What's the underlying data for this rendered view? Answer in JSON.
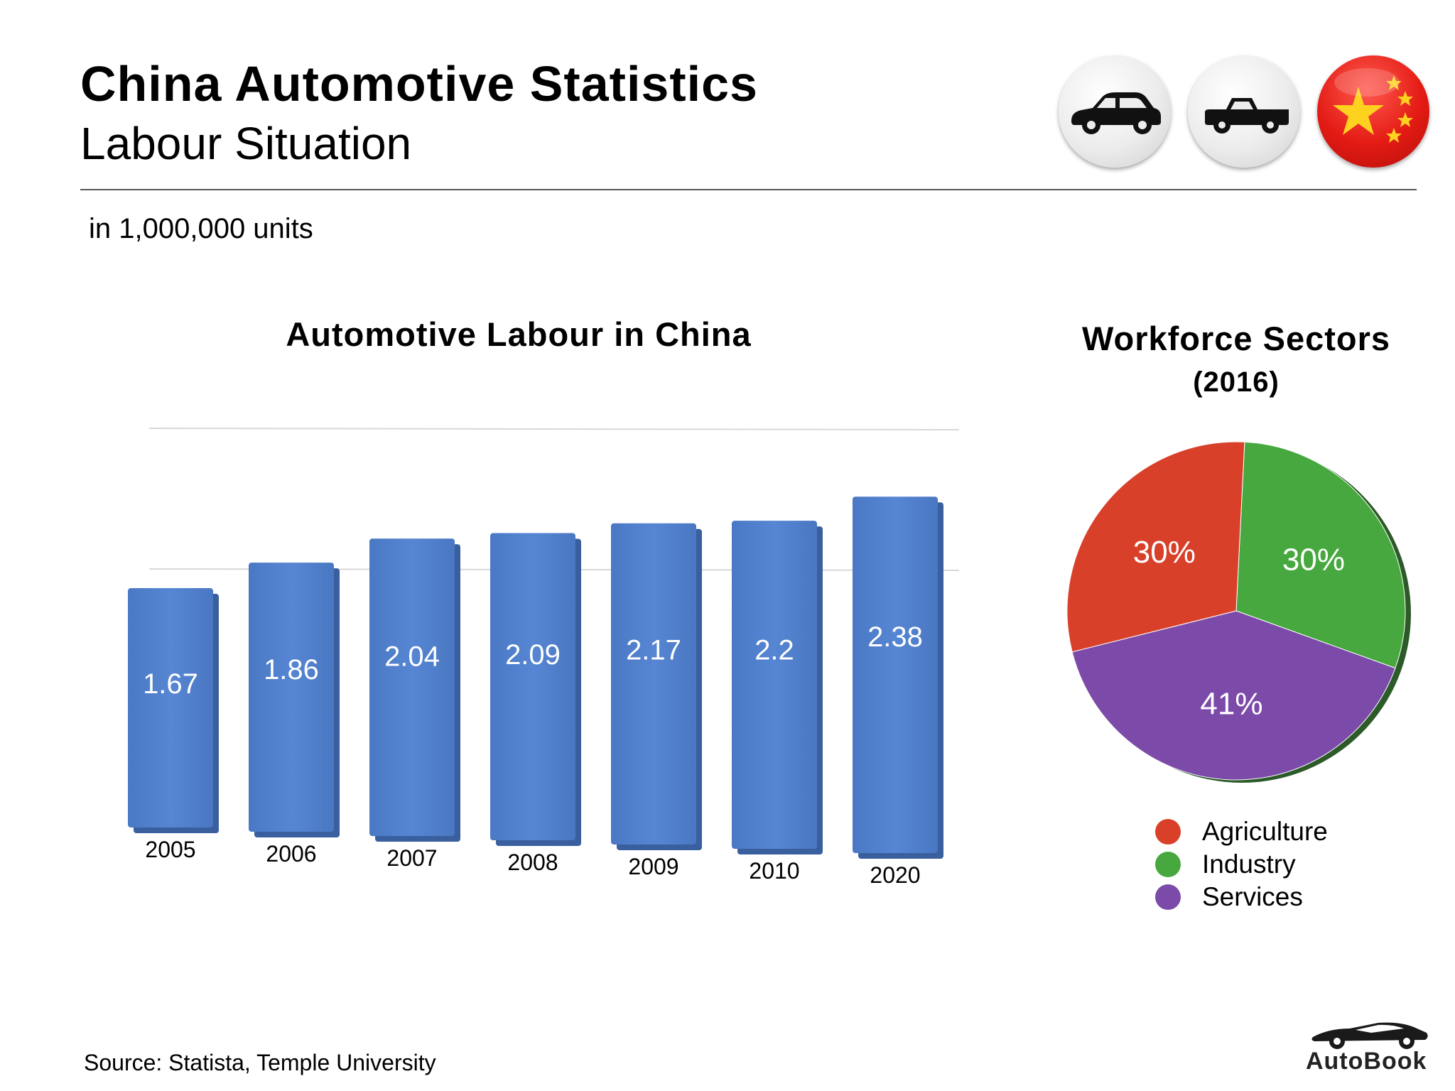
{
  "header": {
    "title": "China Automotive Statistics",
    "subtitle": "Labour Situation"
  },
  "icons": [
    "car-icon",
    "pickup-truck-icon",
    "china-flag-icon"
  ],
  "units_note": "in 1,000,000 units",
  "chart_data": [
    {
      "type": "bar",
      "title": "Automotive Labour in China",
      "categories": [
        "2005",
        "2006",
        "2007",
        "2008",
        "2009",
        "2010",
        "2020"
      ],
      "values": [
        1.67,
        1.86,
        2.04,
        2.09,
        2.17,
        2.2,
        2.38
      ],
      "value_labels": [
        "1.67",
        "1.86",
        "2.04",
        "2.09",
        "2.17",
        "2.2",
        "2.38"
      ],
      "xlabel": "",
      "ylabel": "",
      "ylim": [
        0,
        2.5
      ],
      "grid": true,
      "color": "#4f7ecb"
    },
    {
      "type": "pie",
      "title": "Workforce Sectors",
      "subtitle": "(2016)",
      "labels": [
        "Agriculture",
        "Industry",
        "Services"
      ],
      "values": [
        30,
        30,
        41
      ],
      "value_labels": [
        "30%",
        "30%",
        "41%"
      ],
      "colors": [
        "#d8402a",
        "#46a83e",
        "#7c4aa8"
      ],
      "legend": "bottom"
    }
  ],
  "footer": {
    "source": "Source:  Statista, Temple University",
    "brand": "AutoBook"
  }
}
